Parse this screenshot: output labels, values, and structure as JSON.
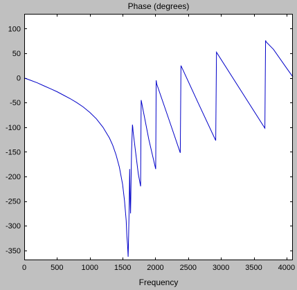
{
  "chart_data": {
    "type": "line",
    "title": "Phase (degrees)",
    "xlabel": "Frequency",
    "ylabel": "",
    "xlim": [
      0,
      4096
    ],
    "ylim": [
      -370,
      130
    ],
    "xticks": [
      0,
      500,
      1000,
      1500,
      2000,
      2500,
      3000,
      3500,
      4000
    ],
    "yticks": [
      100,
      50,
      0,
      -50,
      -100,
      -150,
      -200,
      -250,
      -300,
      -350
    ],
    "grid": false,
    "colors": {
      "line": "#0000c8",
      "plot_background": "#ffffff",
      "figure_background": "#c0c0c0"
    },
    "series": [
      {
        "x": [
          0,
          100,
          200,
          300,
          400,
          500,
          600,
          700,
          800,
          900,
          1000,
          1100,
          1200,
          1300,
          1350,
          1400,
          1450,
          1500,
          1530,
          1555,
          1565,
          1575,
          1585,
          1592,
          1600,
          1608,
          1615,
          1622,
          1628,
          1636,
          1643,
          1650,
          1655,
          1660,
          1700,
          1740,
          1775,
          1783,
          1900,
          2005,
          2012,
          2020,
          2200,
          2380,
          2390,
          2650,
          2920,
          2932,
          3670,
          3675,
          3680,
          3690,
          3800,
          4000,
          4096
        ],
        "y": [
          0,
          -5,
          -10,
          -16,
          -22,
          -28,
          -35,
          -42,
          -50,
          -59,
          -70,
          -83,
          -100,
          -122,
          -137,
          -156,
          -181,
          -216,
          -250,
          -290,
          -320,
          -338,
          -363,
          -320,
          -260,
          -185,
          -250,
          -275,
          -220,
          -150,
          -125,
          -95,
          -100,
          -108,
          -152,
          -195,
          -220,
          -45,
          -125,
          -185,
          -5,
          -12,
          -82,
          -152,
          25,
          -50,
          -127,
          52,
          -102,
          -10,
          76,
          73,
          58,
          20,
          2
        ]
      }
    ]
  }
}
